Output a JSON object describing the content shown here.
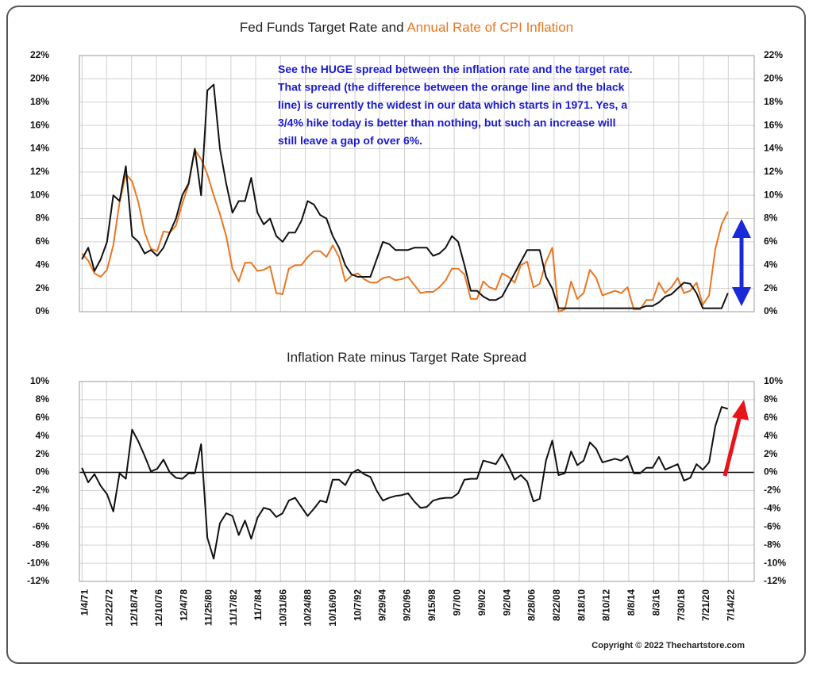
{
  "chart_data": [
    {
      "type": "line",
      "title": "Fed Funds Target Rate and ",
      "title_highlight": "Annual Rate of CPI Inflation",
      "title_highlight_color": "#e87722",
      "annotation": [
        "See the HUGE spread between the inflation rate and the target rate.",
        "That spread (the difference between the orange line and the black",
        "line) is currently the widest in our data which starts in 1971.  Yes,  a",
        "3/4% hike today is better than nothing, but such an increase will",
        "still leave a gap of over 6%."
      ],
      "annotation_color": "#1a1ad0",
      "xlim": [
        1970.8,
        2024.6
      ],
      "ylim": [
        0,
        22
      ],
      "yticks": [
        {
          "value": 0,
          "label": "0%"
        },
        {
          "value": 2,
          "label": "2%"
        },
        {
          "value": 4,
          "label": "4%"
        },
        {
          "value": 6,
          "label": "6%"
        },
        {
          "value": 8,
          "label": "8%"
        },
        {
          "value": 10,
          "label": "10%"
        },
        {
          "value": 12,
          "label": "12%"
        },
        {
          "value": 14,
          "label": "14%"
        },
        {
          "value": 16,
          "label": "16%"
        },
        {
          "value": 18,
          "label": "18%"
        },
        {
          "value": 20,
          "label": "20%"
        },
        {
          "value": 22,
          "label": "22%"
        }
      ],
      "grid": true,
      "x": [
        1971.0,
        1971.5,
        1972.0,
        1972.5,
        1973.0,
        1973.5,
        1974.0,
        1974.5,
        1975.0,
        1975.5,
        1976.0,
        1976.5,
        1977.0,
        1977.5,
        1978.0,
        1978.5,
        1979.0,
        1979.5,
        1980.0,
        1980.5,
        1981.0,
        1981.5,
        1982.0,
        1982.5,
        1983.0,
        1983.5,
        1984.0,
        1984.5,
        1985.0,
        1985.5,
        1986.0,
        1986.5,
        1987.0,
        1987.5,
        1988.0,
        1988.5,
        1989.0,
        1989.5,
        1990.0,
        1990.5,
        1991.0,
        1991.5,
        1992.0,
        1992.5,
        1993.0,
        1993.5,
        1994.0,
        1994.5,
        1995.0,
        1995.5,
        1996.0,
        1996.5,
        1997.0,
        1997.5,
        1998.0,
        1998.5,
        1999.0,
        1999.5,
        2000.0,
        2000.5,
        2001.0,
        2001.5,
        2002.0,
        2002.5,
        2003.0,
        2003.5,
        2004.0,
        2004.5,
        2005.0,
        2005.5,
        2006.0,
        2006.5,
        2007.0,
        2007.5,
        2008.0,
        2008.5,
        2009.0,
        2009.5,
        2010.0,
        2010.5,
        2011.0,
        2011.5,
        2012.0,
        2012.5,
        2013.0,
        2013.5,
        2014.0,
        2014.5,
        2015.0,
        2015.5,
        2016.0,
        2016.5,
        2017.0,
        2017.5,
        2018.0,
        2018.5,
        2019.0,
        2019.5,
        2020.0,
        2020.5,
        2021.0,
        2021.5,
        2022.0,
        2022.5
      ],
      "series": [
        {
          "color": "#e87722",
          "values": [
            5.0,
            4.4,
            3.3,
            3.0,
            3.6,
            5.7,
            9.4,
            11.8,
            11.2,
            9.4,
            6.8,
            5.4,
            5.2,
            6.9,
            6.8,
            7.4,
            9.3,
            10.9,
            13.9,
            13.1,
            11.8,
            10.0,
            8.4,
            6.5,
            3.7,
            2.6,
            4.2,
            4.2,
            3.5,
            3.6,
            3.9,
            1.6,
            1.5,
            3.7,
            4.0,
            4.0,
            4.7,
            5.2,
            5.2,
            4.7,
            5.7,
            4.7,
            2.6,
            3.1,
            3.3,
            2.8,
            2.5,
            2.5,
            2.9,
            3.0,
            2.7,
            2.8,
            3.0,
            2.3,
            1.6,
            1.7,
            1.7,
            2.1,
            2.7,
            3.7,
            3.7,
            3.2,
            1.1,
            1.1,
            2.6,
            2.1,
            1.9,
            3.3,
            3.0,
            2.5,
            4.0,
            4.3,
            2.1,
            2.4,
            4.3,
            5.5,
            0.0,
            0.2,
            2.6,
            1.1,
            1.6,
            3.6,
            2.9,
            1.4,
            1.6,
            1.8,
            1.6,
            2.1,
            0.2,
            0.2,
            1.0,
            1.0,
            2.5,
            1.6,
            2.1,
            2.9,
            1.6,
            1.8,
            2.5,
            0.6,
            1.4,
            5.4,
            7.5,
            8.6
          ]
        },
        {
          "color": "#111111",
          "values": [
            4.5,
            5.5,
            3.5,
            4.5,
            6.0,
            10.0,
            9.5,
            12.5,
            6.5,
            6.0,
            5.0,
            5.3,
            4.8,
            5.5,
            6.8,
            8.0,
            10.0,
            11.0,
            14.0,
            10.0,
            19.0,
            19.5,
            14.0,
            11.0,
            8.5,
            9.5,
            9.5,
            11.5,
            8.5,
            7.5,
            8.0,
            6.5,
            6.0,
            6.8,
            6.8,
            7.8,
            9.5,
            9.2,
            8.3,
            8.0,
            6.5,
            5.5,
            4.0,
            3.2,
            3.0,
            3.0,
            3.0,
            4.5,
            6.0,
            5.8,
            5.3,
            5.3,
            5.3,
            5.5,
            5.5,
            5.5,
            4.8,
            5.0,
            5.5,
            6.5,
            6.0,
            4.0,
            1.8,
            1.8,
            1.3,
            1.0,
            1.0,
            1.3,
            2.3,
            3.3,
            4.3,
            5.3,
            5.3,
            5.3,
            3.0,
            2.0,
            0.3,
            0.3,
            0.3,
            0.3,
            0.3,
            0.3,
            0.3,
            0.3,
            0.3,
            0.3,
            0.3,
            0.3,
            0.3,
            0.3,
            0.5,
            0.5,
            0.8,
            1.3,
            1.5,
            2.0,
            2.5,
            2.4,
            1.6,
            0.3,
            0.3,
            0.3,
            0.3,
            1.6
          ]
        }
      ]
    },
    {
      "type": "line",
      "title": "Inflation Rate minus Target Rate Spread",
      "xlim": [
        1970.8,
        2024.6
      ],
      "ylim": [
        -12,
        10
      ],
      "yticks": [
        {
          "value": -12,
          "label": "-12%"
        },
        {
          "value": -10,
          "label": "-10%"
        },
        {
          "value": -8,
          "label": "-8%"
        },
        {
          "value": -6,
          "label": "-6%"
        },
        {
          "value": -4,
          "label": "-4%"
        },
        {
          "value": -2,
          "label": "-2%"
        },
        {
          "value": 0,
          "label": "0%"
        },
        {
          "value": 2,
          "label": "2%"
        },
        {
          "value": 4,
          "label": "4%"
        },
        {
          "value": 6,
          "label": "6%"
        },
        {
          "value": 8,
          "label": "8%"
        },
        {
          "value": 10,
          "label": "10%"
        }
      ],
      "xticks": [
        {
          "value": 1971.01,
          "label": "1/4/71"
        },
        {
          "value": 1972.97,
          "label": "12/22/72"
        },
        {
          "value": 1974.96,
          "label": "12/18/74"
        },
        {
          "value": 1976.94,
          "label": "12/10/76"
        },
        {
          "value": 1978.92,
          "label": "12/4/78"
        },
        {
          "value": 1980.9,
          "label": "11/25/80"
        },
        {
          "value": 1982.88,
          "label": "11/17/82"
        },
        {
          "value": 1984.85,
          "label": "11/7/84"
        },
        {
          "value": 1986.83,
          "label": "10/31/86"
        },
        {
          "value": 1988.81,
          "label": "10/24/88"
        },
        {
          "value": 1990.79,
          "label": "10/16/90"
        },
        {
          "value": 1992.77,
          "label": "10/7/92"
        },
        {
          "value": 1994.74,
          "label": "9/29/94"
        },
        {
          "value": 1996.72,
          "label": "9/20/96"
        },
        {
          "value": 1998.71,
          "label": "9/15/98"
        },
        {
          "value": 2000.68,
          "label": "9/7/00"
        },
        {
          "value": 2002.69,
          "label": "9/9/02"
        },
        {
          "value": 2004.67,
          "label": "9/2/04"
        },
        {
          "value": 2006.65,
          "label": "8/28/06"
        },
        {
          "value": 2008.64,
          "label": "8/22/08"
        },
        {
          "value": 2010.63,
          "label": "8/18/10"
        },
        {
          "value": 2012.61,
          "label": "8/10/12"
        },
        {
          "value": 2014.6,
          "label": "8/8/14"
        },
        {
          "value": 2016.59,
          "label": "8/3/16"
        },
        {
          "value": 2018.58,
          "label": "7/30/18"
        },
        {
          "value": 2020.55,
          "label": "7/21/20"
        },
        {
          "value": 2022.53,
          "label": "7/14/22"
        }
      ],
      "grid": true,
      "x": [
        1971.0,
        1971.5,
        1972.0,
        1972.5,
        1973.0,
        1973.5,
        1974.0,
        1974.5,
        1975.0,
        1975.5,
        1976.0,
        1976.5,
        1977.0,
        1977.5,
        1978.0,
        1978.5,
        1979.0,
        1979.5,
        1980.0,
        1980.5,
        1981.0,
        1981.5,
        1982.0,
        1982.5,
        1983.0,
        1983.5,
        1984.0,
        1984.5,
        1985.0,
        1985.5,
        1986.0,
        1986.5,
        1987.0,
        1987.5,
        1988.0,
        1988.5,
        1989.0,
        1989.5,
        1990.0,
        1990.5,
        1991.0,
        1991.5,
        1992.0,
        1992.5,
        1993.0,
        1993.5,
        1994.0,
        1994.5,
        1995.0,
        1995.5,
        1996.0,
        1996.5,
        1997.0,
        1997.5,
        1998.0,
        1998.5,
        1999.0,
        1999.5,
        2000.0,
        2000.5,
        2001.0,
        2001.5,
        2002.0,
        2002.5,
        2003.0,
        2003.5,
        2004.0,
        2004.5,
        2005.0,
        2005.5,
        2006.0,
        2006.5,
        2007.0,
        2007.5,
        2008.0,
        2008.5,
        2009.0,
        2009.5,
        2010.0,
        2010.5,
        2011.0,
        2011.5,
        2012.0,
        2012.5,
        2013.0,
        2013.5,
        2014.0,
        2014.5,
        2015.0,
        2015.5,
        2016.0,
        2016.5,
        2017.0,
        2017.5,
        2018.0,
        2018.5,
        2019.0,
        2019.5,
        2020.0,
        2020.5,
        2021.0,
        2021.5,
        2022.0,
        2022.5
      ],
      "series": [
        {
          "color": "#111111",
          "values": [
            0.5,
            -1.1,
            -0.2,
            -1.5,
            -2.4,
            -4.3,
            -0.1,
            -0.7,
            4.7,
            3.4,
            1.8,
            0.1,
            0.4,
            1.4,
            0.0,
            -0.6,
            -0.7,
            -0.1,
            -0.1,
            3.1,
            -7.2,
            -9.5,
            -5.6,
            -4.5,
            -4.8,
            -6.9,
            -5.3,
            -7.3,
            -5.0,
            -3.9,
            -4.1,
            -4.9,
            -4.5,
            -3.1,
            -2.8,
            -3.8,
            -4.8,
            -4.0,
            -3.1,
            -3.3,
            -0.8,
            -0.8,
            -1.4,
            -0.1,
            0.3,
            -0.2,
            -0.5,
            -2.0,
            -3.1,
            -2.8,
            -2.6,
            -2.5,
            -2.3,
            -3.2,
            -3.9,
            -3.8,
            -3.1,
            -2.9,
            -2.8,
            -2.8,
            -2.3,
            -0.8,
            -0.7,
            -0.7,
            1.3,
            1.1,
            0.9,
            2.0,
            0.7,
            -0.8,
            -0.3,
            -1.0,
            -3.2,
            -2.9,
            1.3,
            3.5,
            -0.3,
            -0.1,
            2.3,
            0.8,
            1.3,
            3.3,
            2.6,
            1.1,
            1.3,
            1.5,
            1.3,
            1.8,
            -0.1,
            -0.1,
            0.5,
            0.5,
            1.7,
            0.3,
            0.6,
            0.9,
            -0.9,
            -0.6,
            0.9,
            0.3,
            1.1,
            5.1,
            7.2,
            7.0
          ]
        }
      ]
    }
  ],
  "copyright": "Copyright © 2022 Thechartstore.com"
}
